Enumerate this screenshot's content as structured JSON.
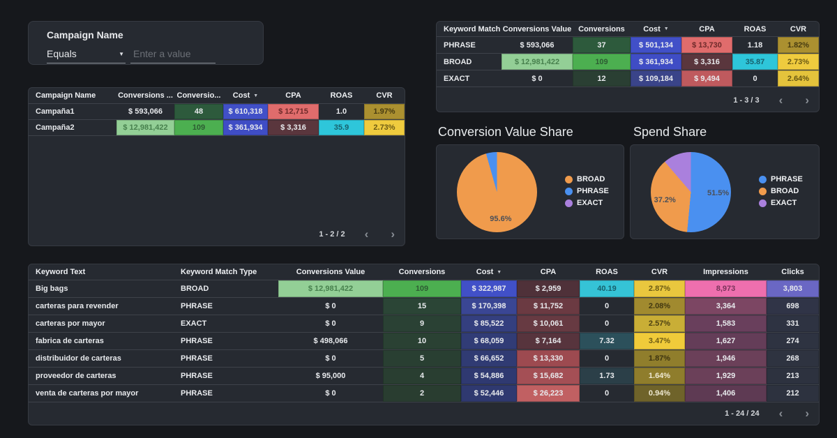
{
  "colors": {
    "page_bg": "#16181c",
    "panel_bg": "#262a31",
    "row_divider": "#3e424a",
    "text": "#e8eaed",
    "muted": "#9aa0a6",
    "green_bright": "#4caf50",
    "green_light": "#93cf96",
    "blue_bright": "#4150c8",
    "salmon": "#e06c6c",
    "maroon": "#5a363d",
    "cyan": "#2ec6da",
    "yellow": "#efcb3e",
    "olive": "#ab9030",
    "pink": "#ee6fae",
    "purple": "#6a67c4"
  },
  "icons": {
    "dropdown_caret": "▼",
    "sort_desc": "▼",
    "prev": "‹",
    "next": "›"
  },
  "filter": {
    "title": "Campaign Name",
    "operator": "Equals",
    "placeholder": "Enter a value"
  },
  "campaign_table": {
    "headers": [
      "Campaign Name",
      "Conversions ...",
      "Conversio...",
      "Cost",
      "CPA",
      "ROAS",
      "CVR"
    ],
    "sort_col": 3,
    "rows": [
      {
        "cells": [
          {
            "t": "Campaña1"
          },
          {
            "t": "$ 593,066"
          },
          {
            "t": "48",
            "bg": "#2d5a3c"
          },
          {
            "t": "$ 610,318",
            "bg": "#4150c8"
          },
          {
            "t": "$ 12,715",
            "bg": "#e06c6c",
            "fg": "#6e2a2a"
          },
          {
            "t": "1.0"
          },
          {
            "t": "1.97%",
            "bg": "#ab9030",
            "fg": "#473b11"
          }
        ]
      },
      {
        "cells": [
          {
            "t": "Campaña2"
          },
          {
            "t": "$ 12,981,422",
            "bg": "#93cf96",
            "fg": "#47804d"
          },
          {
            "t": "109",
            "bg": "#4caf50",
            "fg": "#2d5c33"
          },
          {
            "t": "$ 361,934",
            "bg": "#3f4dc5"
          },
          {
            "t": "$ 3,316",
            "bg": "#5a363d"
          },
          {
            "t": "35.9",
            "bg": "#2ec6da",
            "fg": "#17606c"
          },
          {
            "t": "2.73%",
            "bg": "#efcb3e",
            "fg": "#6b5a14"
          }
        ]
      }
    ],
    "pagination": "1 - 2 / 2"
  },
  "match_table": {
    "headers": [
      "Keyword Match ...",
      "Conversions Value",
      "Conversions",
      "Cost",
      "CPA",
      "ROAS",
      "CVR"
    ],
    "sort_col": 3,
    "rows": [
      {
        "cells": [
          {
            "t": "PHRASE"
          },
          {
            "t": "$ 593,066"
          },
          {
            "t": "37",
            "bg": "#2d5a3c"
          },
          {
            "t": "$ 501,134",
            "bg": "#4150c8"
          },
          {
            "t": "$ 13,730",
            "bg": "#e06c6c",
            "fg": "#6e2a2a"
          },
          {
            "t": "1.18"
          },
          {
            "t": "1.82%",
            "bg": "#ab9030",
            "fg": "#473b11"
          }
        ]
      },
      {
        "cells": [
          {
            "t": "BROAD"
          },
          {
            "t": "$ 12,981,422",
            "bg": "#93cf96",
            "fg": "#47804d"
          },
          {
            "t": "109",
            "bg": "#4caf50",
            "fg": "#2d5c33"
          },
          {
            "t": "$ 361,934",
            "bg": "#3f4dc5"
          },
          {
            "t": "$ 3,316",
            "bg": "#5a363d"
          },
          {
            "t": "35.87",
            "bg": "#2ec6da",
            "fg": "#17606c"
          },
          {
            "t": "2.73%",
            "bg": "#efcb3e",
            "fg": "#6b5a14"
          }
        ]
      },
      {
        "cells": [
          {
            "t": "EXACT"
          },
          {
            "t": "$ 0"
          },
          {
            "t": "12",
            "bg": "#2a3f33"
          },
          {
            "t": "$ 109,184",
            "bg": "#3a4489"
          },
          {
            "t": "$ 9,494",
            "bg": "#bf5a5e"
          },
          {
            "t": "0"
          },
          {
            "t": "2.64%",
            "bg": "#e4c33c",
            "fg": "#665612"
          }
        ]
      }
    ],
    "pagination": "1 - 3 / 3"
  },
  "keyword_table": {
    "headers": [
      "Keyword Text",
      "Keyword Match Type",
      "Conversions Value",
      "Conversions",
      "Cost",
      "CPA",
      "ROAS",
      "CVR",
      "Impressions",
      "Clicks"
    ],
    "sort_col": 4,
    "rows": [
      {
        "cells": [
          {
            "t": "Big bags"
          },
          {
            "t": "BROAD"
          },
          {
            "t": "$ 12,981,422",
            "bg": "#93cf96",
            "fg": "#47804d"
          },
          {
            "t": "109",
            "bg": "#4caf50",
            "fg": "#2d5c33"
          },
          {
            "t": "$ 322,987",
            "bg": "#4150c8"
          },
          {
            "t": "$ 2,959",
            "bg": "#4f3139"
          },
          {
            "t": "40.19",
            "bg": "#35c3d6",
            "fg": "#17606c"
          },
          {
            "t": "2.87%",
            "bg": "#e9c73e",
            "fg": "#6b5a14"
          },
          {
            "t": "8,973",
            "bg": "#ee6fae",
            "fg": "#79335a"
          },
          {
            "t": "3,803",
            "bg": "#6a67c4"
          }
        ]
      },
      {
        "cells": [
          {
            "t": "carteras para revender"
          },
          {
            "t": "PHRASE"
          },
          {
            "t": "$ 0"
          },
          {
            "t": "15",
            "bg": "#2b4536"
          },
          {
            "t": "$ 170,398",
            "bg": "#3a4694"
          },
          {
            "t": "$ 11,752",
            "bg": "#6b3a42"
          },
          {
            "t": "0"
          },
          {
            "t": "2.08%",
            "bg": "#a18a2f",
            "fg": "#423811"
          },
          {
            "t": "3,364",
            "bg": "#7c4663"
          },
          {
            "t": "698",
            "bg": "#303447"
          }
        ]
      },
      {
        "cells": [
          {
            "t": "carteras por mayor"
          },
          {
            "t": "EXACT"
          },
          {
            "t": "$ 0"
          },
          {
            "t": "9",
            "bg": "#2a4134"
          },
          {
            "t": "$ 85,522",
            "bg": "#343f7f"
          },
          {
            "t": "$ 10,061",
            "bg": "#673a42"
          },
          {
            "t": "0"
          },
          {
            "t": "2.57%",
            "bg": "#c9ae36",
            "fg": "#4d4112"
          },
          {
            "t": "1,583",
            "bg": "#693f5c"
          },
          {
            "t": "331",
            "bg": "#2e3342"
          }
        ]
      },
      {
        "cells": [
          {
            "t": "fabrica de carteras"
          },
          {
            "t": "PHRASE"
          },
          {
            "t": "$ 498,066"
          },
          {
            "t": "10",
            "bg": "#2a4133"
          },
          {
            "t": "$ 68,059",
            "bg": "#313c76"
          },
          {
            "t": "$ 7,164",
            "bg": "#57343d"
          },
          {
            "t": "7.32",
            "bg": "#2c505b"
          },
          {
            "t": "3.47%",
            "bg": "#f0cb3a",
            "fg": "#6b5a14"
          },
          {
            "t": "1,627",
            "bg": "#643d58"
          },
          {
            "t": "274",
            "bg": "#2e3341"
          }
        ]
      },
      {
        "cells": [
          {
            "t": "distribuidor de carteras"
          },
          {
            "t": "PHRASE"
          },
          {
            "t": "$ 0"
          },
          {
            "t": "5",
            "bg": "#293f32"
          },
          {
            "t": "$ 66,652",
            "bg": "#303b73"
          },
          {
            "t": "$ 13,330",
            "bg": "#9d4a50"
          },
          {
            "t": "0"
          },
          {
            "t": "1.87%",
            "bg": "#907e2c",
            "fg": "#3d3410"
          },
          {
            "t": "1,946",
            "bg": "#6b4059"
          },
          {
            "t": "268",
            "bg": "#2e3340"
          }
        ]
      },
      {
        "cells": [
          {
            "t": "proveedor de carteras"
          },
          {
            "t": "PHRASE"
          },
          {
            "t": "$ 95,000"
          },
          {
            "t": "4",
            "bg": "#293e31"
          },
          {
            "t": "$ 54,886",
            "bg": "#2f3971"
          },
          {
            "t": "$ 15,682",
            "bg": "#a44f55"
          },
          {
            "t": "1.73",
            "bg": "#2b3f48"
          },
          {
            "t": "1.64%",
            "bg": "#8f7d2c",
            "fg": "#efe9d2"
          },
          {
            "t": "1,929",
            "bg": "#6b4059"
          },
          {
            "t": "213",
            "bg": "#2d323f"
          }
        ]
      },
      {
        "cells": [
          {
            "t": "venta de carteras por mayor"
          },
          {
            "t": "PHRASE"
          },
          {
            "t": "$ 0"
          },
          {
            "t": "2",
            "bg": "#293d30"
          },
          {
            "t": "$ 52,446",
            "bg": "#2f3970"
          },
          {
            "t": "$ 26,223",
            "bg": "#c16062"
          },
          {
            "t": "0"
          },
          {
            "t": "0.94%",
            "bg": "#6f632a",
            "fg": "#efe9d2"
          },
          {
            "t": "1,406",
            "bg": "#5e3a53"
          },
          {
            "t": "212",
            "bg": "#2d323f"
          }
        ]
      }
    ],
    "pagination": "1 - 24 / 24"
  },
  "chart_data": [
    {
      "type": "pie",
      "title": "Conversion Value Share",
      "legend_position": "right",
      "slices": [
        {
          "name": "BROAD",
          "value": 95.6,
          "color": "#f09b4c",
          "label": "95.6%"
        },
        {
          "name": "PHRASE",
          "value": 4.4,
          "color": "#4a90f0"
        },
        {
          "name": "EXACT",
          "value": 0,
          "color": "#aa80dd"
        }
      ]
    },
    {
      "type": "pie",
      "title": "Spend Share",
      "legend_position": "right",
      "slices": [
        {
          "name": "PHRASE",
          "value": 51.5,
          "color": "#4a90f0",
          "label": "51.5%"
        },
        {
          "name": "BROAD",
          "value": 37.2,
          "color": "#f09b4c",
          "label": "37.2%"
        },
        {
          "name": "EXACT",
          "value": 11.3,
          "color": "#aa80dd"
        }
      ]
    }
  ]
}
